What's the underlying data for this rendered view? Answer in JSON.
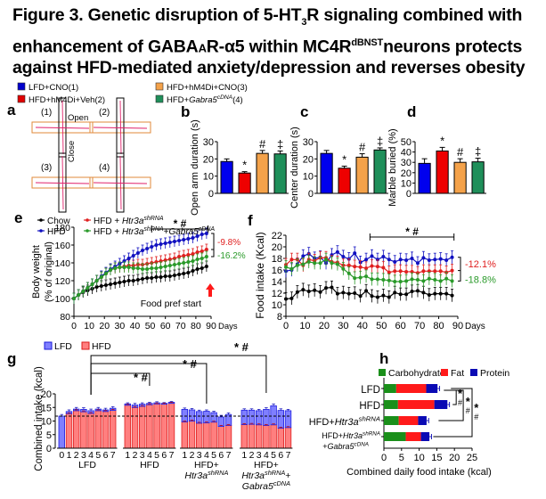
{
  "figure": {
    "title_parts": {
      "line1_a": "Figure 3. Genetic disruption of 5-HT",
      "line1_sub": "3",
      "line1_b": "R signaling combined with",
      "line2_a": "enhancement of GABA",
      "line2_small": "A",
      "line2_b": "R-α5 within MC4R",
      "line2_sup": "dBNST",
      "line2_c": "neurons protects",
      "line3": "against HFD-mediated anxiety/depression and reverses obesity"
    },
    "panel_labels": [
      "a",
      "b",
      "c",
      "d",
      "e",
      "f",
      "g",
      "h"
    ],
    "top_legend": [
      {
        "label": "LFD+CNO(1)",
        "color": "#0000cc"
      },
      {
        "label": "HFD+hM4Di+Veh(2)",
        "color": "#e00000"
      },
      {
        "label": "HFD+hM4Di+CNO(3)",
        "color": "#f4a24a"
      },
      {
        "label_a": "HFD+",
        "label_i": "Gabra5",
        "label_sup": "cDNA",
        "label_b": "(4)",
        "color": "#1f8f5a"
      }
    ],
    "panel_a": {
      "maze_labels": [
        "(1)",
        "(2)",
        "(3)",
        "(4)"
      ],
      "open_label": "Open",
      "close_label": "Close"
    }
  },
  "chart_data": [
    {
      "id": "b",
      "type": "bar",
      "categories": [
        "LFD+CNO(1)",
        "HFD+hM4Di+Veh(2)",
        "HFD+hM4Di+CNO(3)",
        "HFD+Gabra5cDNA(4)"
      ],
      "values": [
        18.5,
        11.8,
        23.2,
        22.9
      ],
      "errors": [
        1.5,
        0.8,
        1.7,
        1.7
      ],
      "annotations": [
        "",
        "*",
        "#",
        "‡"
      ],
      "ylabel": "Open arm duration (s)",
      "ylim": [
        0,
        30
      ],
      "yticks": [
        0,
        10,
        20,
        30
      ],
      "colors": [
        "#0000ee",
        "#ee0000",
        "#f4a24a",
        "#1f8f5a"
      ]
    },
    {
      "id": "c",
      "type": "bar",
      "categories": [
        "LFD+CNO(1)",
        "HFD+hM4Di+Veh(2)",
        "HFD+hM4Di+CNO(3)",
        "HFD+Gabra5cDNA(4)"
      ],
      "values": [
        23.2,
        14.6,
        21.0,
        25.2
      ],
      "errors": [
        1.7,
        1.2,
        2.0,
        1.2
      ],
      "annotations": [
        "",
        "*",
        "#",
        "‡"
      ],
      "ylabel": "Center duration (s)",
      "ylim": [
        0,
        30
      ],
      "yticks": [
        0,
        10,
        20,
        30
      ],
      "colors": [
        "#0000ee",
        "#ee0000",
        "#f4a24a",
        "#1f8f5a"
      ]
    },
    {
      "id": "d",
      "type": "bar",
      "categories": [
        "LFD+CNO(1)",
        "HFD+hM4Di+Veh(2)",
        "HFD+hM4Di+CNO(3)",
        "HFD+Gabra5cDNA(4)"
      ],
      "values": [
        29,
        41,
        30,
        30.5
      ],
      "errors": [
        4.5,
        3.5,
        3.5,
        3.5
      ],
      "annotations": [
        "",
        "*",
        "#",
        "‡"
      ],
      "ylabel": "Marble buried (%)",
      "ylim": [
        0,
        50
      ],
      "yticks": [
        0,
        10,
        20,
        30,
        40,
        50
      ],
      "colors": [
        "#0000ee",
        "#ee0000",
        "#f4a24a",
        "#1f8f5a"
      ]
    },
    {
      "id": "e",
      "type": "line",
      "ylabel_1": "Body weight",
      "ylabel_2": "(% of original)",
      "xlabel": "Days",
      "xlim": [
        0,
        90
      ],
      "ylim": [
        80,
        180
      ],
      "xticks": [
        0,
        10,
        20,
        30,
        40,
        50,
        60,
        70,
        80,
        90
      ],
      "yticks": [
        80,
        100,
        120,
        140,
        160,
        180
      ],
      "legend": [
        {
          "label": "Chow",
          "color": "#000000"
        },
        {
          "label_a": "HFD + ",
          "label_i": "Htr3a",
          "label_sup": "shRNA",
          "color": "#e02020"
        },
        {
          "label": "HFD",
          "color": "#1010c0"
        },
        {
          "label_a": "HFD + ",
          "label_i": "Htr3a",
          "label_sup": "shRNA",
          "label_b": "+",
          "label_i2": "Gabra5",
          "label_sup2": "cDNA",
          "color": "#2a9a2a"
        }
      ],
      "x": [
        0,
        3,
        6,
        9,
        12,
        15,
        18,
        21,
        24,
        27,
        30,
        33,
        36,
        39,
        42,
        45,
        48,
        51,
        54,
        57,
        60,
        63,
        66,
        69,
        72,
        75,
        78,
        81,
        84,
        87
      ],
      "series": [
        {
          "name": "Chow",
          "color": "#000000",
          "values": [
            100,
            104,
            107,
            109,
            111,
            113,
            114,
            115,
            116,
            117,
            118,
            119,
            120,
            120,
            121,
            122,
            123,
            123,
            124,
            124,
            125,
            125,
            126,
            127,
            128,
            129,
            131,
            133,
            134,
            136
          ]
        },
        {
          "name": "HFD + Htr3a shRNA",
          "color": "#e02020",
          "values": [
            100,
            104,
            108,
            112,
            116,
            120,
            124,
            128,
            132,
            134,
            135,
            136,
            137,
            137,
            138,
            138,
            139,
            140,
            141,
            142,
            143,
            144,
            145,
            147,
            148,
            149,
            150,
            152,
            153,
            155
          ]
        },
        {
          "name": "HFD",
          "color": "#1010c0",
          "values": [
            100,
            104,
            108,
            112,
            116,
            120,
            125,
            129,
            133,
            136,
            139,
            142,
            145,
            148,
            151,
            154,
            156,
            158,
            160,
            161,
            162,
            163,
            164,
            165,
            166,
            167,
            168,
            170,
            172,
            173
          ]
        },
        {
          "name": "HFD + Htr3a shRNA + Gabra5 cDNA",
          "color": "#2a9a2a",
          "values": [
            100,
            104,
            108,
            112,
            116,
            120,
            124,
            128,
            132,
            134,
            135,
            135,
            135,
            134,
            134,
            133,
            133,
            134,
            134,
            135,
            136,
            137,
            138,
            139,
            140,
            141,
            142,
            144,
            145,
            147
          ]
        }
      ],
      "error": 6,
      "sig_label": "* #",
      "sig_range": [
        51,
        88
      ],
      "pct_labels": [
        {
          "text": "-9.8%",
          "color": "#e02020"
        },
        {
          "text": "-16.2%",
          "color": "#2a9a2a"
        }
      ],
      "annotation": "Food pref start"
    },
    {
      "id": "f",
      "type": "line",
      "ylabel": "Food intake (Kcal)",
      "xlabel": "Days",
      "xlim": [
        0,
        90
      ],
      "ylim": [
        8,
        22
      ],
      "xticks": [
        0,
        10,
        20,
        30,
        40,
        50,
        60,
        70,
        80,
        90
      ],
      "yticks": [
        8,
        10,
        12,
        14,
        16,
        18,
        20,
        22
      ],
      "x": [
        0,
        3,
        6,
        9,
        12,
        15,
        18,
        21,
        24,
        27,
        30,
        33,
        36,
        39,
        42,
        45,
        48,
        51,
        54,
        57,
        60,
        63,
        66,
        69,
        72,
        75,
        78,
        81,
        84,
        87
      ],
      "series": [
        {
          "name": "Chow",
          "color": "#000000",
          "values": [
            11.0,
            11.1,
            12.2,
            12.6,
            12.3,
            12.5,
            12.2,
            12.9,
            13.0,
            11.9,
            12.1,
            11.9,
            12.0,
            11.5,
            12.4,
            11.5,
            11.3,
            11.6,
            11.3,
            12.1,
            11.8,
            11.8,
            12.3,
            12.4,
            12.1,
            11.7,
            11.9,
            11.9,
            11.9,
            11.6
          ]
        },
        {
          "name": "HFD",
          "color": "#1010c0",
          "values": [
            15.8,
            16.0,
            17.0,
            18.4,
            18.8,
            18.0,
            18.2,
            17.2,
            18.6,
            19.1,
            18.3,
            17.9,
            18.9,
            17.3,
            17.8,
            18.4,
            17.8,
            18.3,
            17.8,
            17.4,
            17.8,
            17.7,
            18.0,
            17.2,
            18.1,
            17.7,
            17.8,
            17.9,
            17.7,
            18.2
          ]
        },
        {
          "name": "HFD + Htr3a shRNA",
          "color": "#e02020",
          "values": [
            16.9,
            17.8,
            17.8,
            16.8,
            17.8,
            17.6,
            18.1,
            18.1,
            17.4,
            17.3,
            16.8,
            16.8,
            16.6,
            16.5,
            16.3,
            16.7,
            16.6,
            16.4,
            15.6,
            15.8,
            15.8,
            15.7,
            15.7,
            15.5,
            15.8,
            15.8,
            15.8,
            15.8,
            15.6,
            15.9
          ]
        },
        {
          "name": "HFD + Htr3a shRNA + Gabra5 cDNA",
          "color": "#2a9a2a",
          "values": [
            16.5,
            16.2,
            16.8,
            17.0,
            17.4,
            17.2,
            17.2,
            17.8,
            17.2,
            17.0,
            16.2,
            15.4,
            14.6,
            14.7,
            14.9,
            14.4,
            14.4,
            14.3,
            14.2,
            14.0,
            14.0,
            14.1,
            14.4,
            14.3,
            14.1,
            14.5,
            14.3,
            14.1,
            14.5,
            14.1
          ]
        }
      ],
      "error": 1.1,
      "sig_label": "* #",
      "sig_range": [
        44,
        88
      ],
      "pct_labels": [
        {
          "text": "-12.1%",
          "color": "#e02020"
        },
        {
          "text": "-18.8%",
          "color": "#2a9a2a"
        }
      ]
    },
    {
      "id": "g",
      "type": "bar",
      "stacked": true,
      "ylabel": "Combined intake (kcal)",
      "ylim": [
        0,
        20
      ],
      "yticks": [
        0,
        5,
        10,
        15,
        20
      ],
      "legend": [
        {
          "label": "LFD",
          "color": "#7f7fff"
        },
        {
          "label": "HFD",
          "color": "#ff7f7f"
        }
      ],
      "baseline_ref": 11.8,
      "groups": [
        {
          "name_lines": [
            "LFD"
          ],
          "ticks": [
            "0",
            "1",
            "2",
            "3",
            "4",
            "5",
            "6",
            "7"
          ],
          "lfd": [
            11.8,
            0.8,
            0.6,
            0.9,
            1.0,
            0.6,
            0.6,
            0.8
          ],
          "hfd": [
            0,
            12.7,
            13.8,
            13.4,
            12.8,
            13.8,
            13.5,
            13.9
          ],
          "err": [
            0.6,
            0.6,
            0.6,
            0.6,
            0.6,
            0.6,
            0.6,
            0.6
          ]
        },
        {
          "name_lines": [
            "HFD"
          ],
          "ticks": [
            "1",
            "2",
            "3",
            "4",
            "5",
            "6",
            "7"
          ],
          "lfd": [
            0.5,
            0.9,
            0.8,
            0.5,
            0.4,
            0.3,
            0.4
          ],
          "hfd": [
            15.8,
            15.0,
            15.4,
            16.0,
            16.3,
            16.2,
            16.5
          ],
          "err": [
            0.4,
            0.6,
            0.5,
            0.4,
            0.4,
            0.3,
            0.3
          ]
        },
        {
          "name_lines": [
            "HFD+",
            "Htr3a shRNA"
          ],
          "ticks": [
            "1",
            "2",
            "3",
            "4",
            "5",
            "6",
            "7"
          ],
          "lfd": [
            4.6,
            4.1,
            4.3,
            4.3,
            3.5,
            3.5,
            4.0
          ],
          "hfd": [
            9.7,
            10.0,
            9.2,
            9.3,
            9.6,
            8.0,
            8.4
          ],
          "err": [
            0.5,
            0.5,
            0.5,
            0.5,
            0.5,
            0.6,
            0.6
          ]
        },
        {
          "name_lines": [
            "HFD+",
            "Htr3a shRNA +",
            "Gabra5 cDNA"
          ],
          "ticks": [
            "1",
            "2",
            "3",
            "4",
            "5",
            "6",
            "7"
          ],
          "lfd": [
            5.3,
            5.2,
            5.2,
            5.9,
            7.0,
            6.5,
            6.2
          ],
          "hfd": [
            8.7,
            8.8,
            8.6,
            8.4,
            8.6,
            7.4,
            7.6
          ],
          "err": [
            0.5,
            0.5,
            0.5,
            0.6,
            0.7,
            0.6,
            0.5
          ]
        }
      ],
      "sig_labels": [
        "* #",
        "* #",
        "* #"
      ]
    },
    {
      "id": "h",
      "type": "bar",
      "orientation": "horizontal",
      "stacked": true,
      "xlabel": "Combined daily food intake (kcal)",
      "xlim": [
        0,
        25
      ],
      "xticks": [
        0,
        5,
        10,
        15,
        20,
        25
      ],
      "legend": [
        {
          "label": "Carbohydrate",
          "color": "#1a8f1a"
        },
        {
          "label": "Fat",
          "color": "#ff1a1a"
        },
        {
          "label": "Protein",
          "color": "#0a0ab4"
        }
      ],
      "categories": [
        "LFD",
        "HFD",
        "HFD+Htr3a shRNA",
        "HFD+Htr3a shRNA +Gabra5 cDNA"
      ],
      "series": [
        {
          "name": "Carbohydrate",
          "values": [
            3.5,
            4.0,
            4.2,
            6.2
          ]
        },
        {
          "name": "Fat",
          "values": [
            8.5,
            10.3,
            5.5,
            4.3
          ]
        },
        {
          "name": "Protein",
          "values": [
            3.2,
            3.7,
            2.4,
            2.4
          ]
        }
      ],
      "errors": [
        0.6,
        0.6,
        0.6,
        0.6
      ],
      "sig_labels": [
        "*\n#",
        "*\n#",
        "*\n#"
      ]
    }
  ]
}
